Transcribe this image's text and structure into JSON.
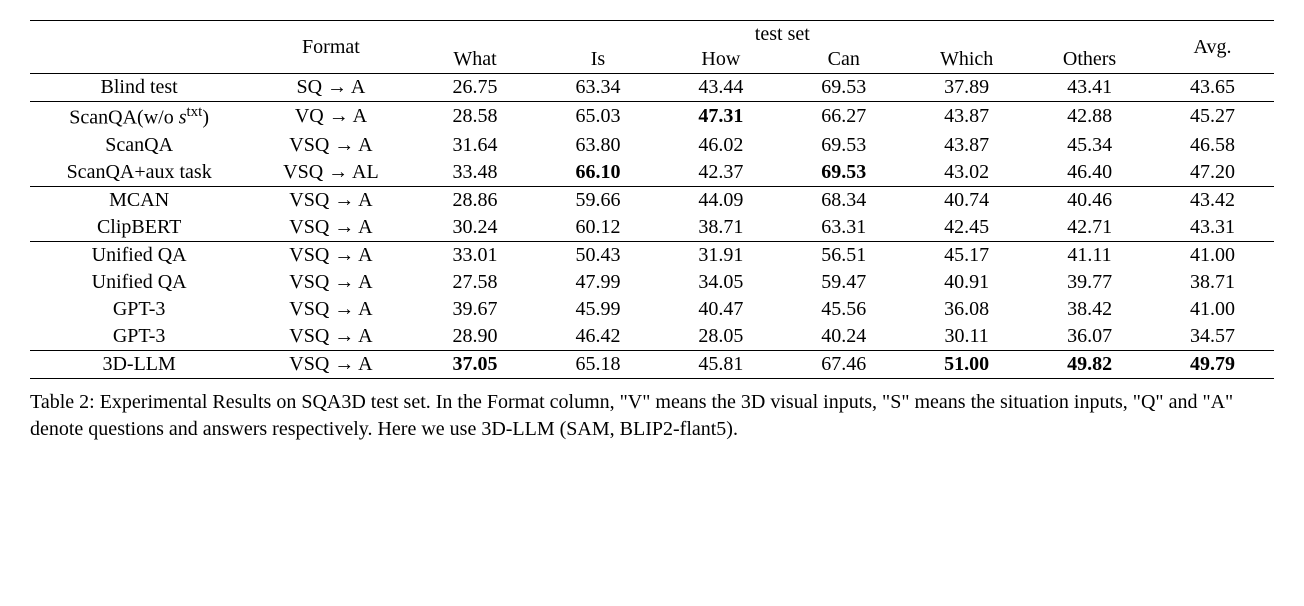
{
  "header": {
    "format": "Format",
    "testset_label": "test set",
    "cols": [
      "What",
      "Is",
      "How",
      "Can",
      "Which",
      "Others"
    ],
    "avg": "Avg."
  },
  "groups": [
    {
      "rows": [
        {
          "method": "Blind test",
          "format": "SQ → A",
          "vals": [
            "26.75",
            "63.34",
            "43.44",
            "69.53",
            "37.89",
            "43.41"
          ],
          "bold": [
            false,
            false,
            false,
            false,
            false,
            false
          ],
          "avg": "43.65",
          "avg_bold": false
        }
      ]
    },
    {
      "rows": [
        {
          "method_html": "ScanQA(w/o <i>s</i><sup>txt</sup>)",
          "format": "VQ → A",
          "vals": [
            "28.58",
            "65.03",
            "47.31",
            "66.27",
            "43.87",
            "42.88"
          ],
          "bold": [
            false,
            false,
            true,
            false,
            false,
            false
          ],
          "avg": "45.27",
          "avg_bold": false
        },
        {
          "method": "ScanQA",
          "format": "VSQ → A",
          "vals": [
            "31.64",
            "63.80",
            "46.02",
            "69.53",
            "43.87",
            "45.34"
          ],
          "bold": [
            false,
            false,
            false,
            false,
            false,
            false
          ],
          "avg": "46.58",
          "avg_bold": false
        },
        {
          "method": "ScanQA+aux task",
          "format": "VSQ → AL",
          "vals": [
            "33.48",
            "66.10",
            "42.37",
            "69.53",
            "43.02",
            "46.40"
          ],
          "bold": [
            false,
            true,
            false,
            true,
            false,
            false
          ],
          "avg": "47.20",
          "avg_bold": false
        }
      ]
    },
    {
      "rows": [
        {
          "method": "MCAN",
          "format": "VSQ → A",
          "vals": [
            "28.86",
            "59.66",
            "44.09",
            "68.34",
            "40.74",
            "40.46"
          ],
          "bold": [
            false,
            false,
            false,
            false,
            false,
            false
          ],
          "avg": "43.42",
          "avg_bold": false
        },
        {
          "method": "ClipBERT",
          "format": "VSQ → A",
          "vals": [
            "30.24",
            "60.12",
            "38.71",
            "63.31",
            "42.45",
            "42.71"
          ],
          "bold": [
            false,
            false,
            false,
            false,
            false,
            false
          ],
          "avg": "43.31",
          "avg_bold": false
        }
      ]
    },
    {
      "rows": [
        {
          "method": "Unified QA",
          "format": "VSQ → A",
          "vals": [
            "33.01",
            "50.43",
            "31.91",
            "56.51",
            "45.17",
            "41.11"
          ],
          "bold": [
            false,
            false,
            false,
            false,
            false,
            false
          ],
          "avg": "41.00",
          "avg_bold": false
        },
        {
          "method": "Unified QA",
          "format": "VSQ → A",
          "vals": [
            "27.58",
            "47.99",
            "34.05",
            "59.47",
            "40.91",
            "39.77"
          ],
          "bold": [
            false,
            false,
            false,
            false,
            false,
            false
          ],
          "avg": "38.71",
          "avg_bold": false
        },
        {
          "method": "GPT-3",
          "format": "VSQ → A",
          "vals": [
            "39.67",
            "45.99",
            "40.47",
            "45.56",
            "36.08",
            "38.42"
          ],
          "bold": [
            false,
            false,
            false,
            false,
            false,
            false
          ],
          "avg": "41.00",
          "avg_bold": false
        },
        {
          "method": "GPT-3",
          "format": "VSQ → A",
          "vals": [
            "28.90",
            "46.42",
            "28.05",
            "40.24",
            "30.11",
            "36.07"
          ],
          "bold": [
            false,
            false,
            false,
            false,
            false,
            false
          ],
          "avg": "34.57",
          "avg_bold": false
        }
      ]
    },
    {
      "rows": [
        {
          "method": "3D-LLM",
          "format": "VSQ → A",
          "vals": [
            "37.05",
            "65.18",
            "45.81",
            "67.46",
            "51.00",
            "49.82"
          ],
          "bold": [
            true,
            false,
            false,
            false,
            true,
            true
          ],
          "avg": "49.79",
          "avg_bold": true
        }
      ]
    }
  ],
  "caption": "Table 2: Experimental Results on SQA3D test set. In the Format column, \"V\" means the 3D visual inputs, \"S\" means the situation inputs, \"Q\" and \"A\" denote questions and answers respectively. Here we use 3D-LLM (SAM, BLIP2-flant5).",
  "style": {
    "font_family": "Times New Roman",
    "font_size_pt": 15,
    "text_color": "#000000",
    "background_color": "#ffffff",
    "rule_color": "#000000"
  }
}
